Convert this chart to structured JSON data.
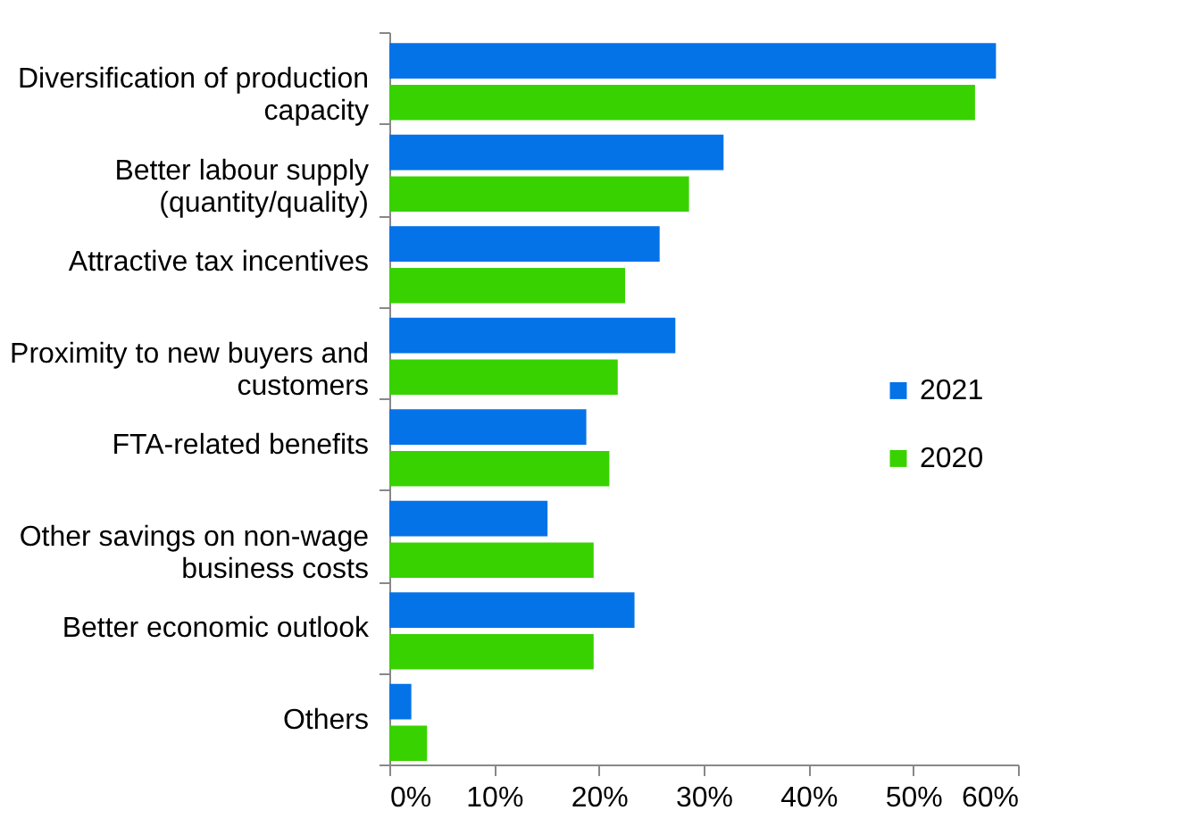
{
  "chart_data": {
    "type": "bar",
    "orientation": "horizontal",
    "categories": [
      "Diversification of production\ncapacity",
      "Better labour supply\n(quantity/quality)",
      "Attractive tax incentives",
      "Proximity to new buyers and\ncustomers",
      "FTA-related benefits",
      "Other savings on non-wage\nbusiness costs",
      "Better economic outlook",
      "Others"
    ],
    "series": [
      {
        "name": "2021",
        "color": "#0573e8",
        "values": [
          57.9,
          31.9,
          25.8,
          27.3,
          18.8,
          15.1,
          23.4,
          2.1
        ]
      },
      {
        "name": "2020",
        "color": "#38d200",
        "values": [
          55.9,
          28.6,
          22.5,
          21.8,
          21.0,
          19.5,
          19.5,
          3.6
        ]
      }
    ],
    "xlim": [
      0,
      60
    ],
    "xticks": [
      {
        "value": 0,
        "label": "0%"
      },
      {
        "value": 10,
        "label": "10%"
      },
      {
        "value": 20,
        "label": "20%"
      },
      {
        "value": 30,
        "label": "30%"
      },
      {
        "value": 40,
        "label": "40%"
      },
      {
        "value": 50,
        "label": "50%"
      },
      {
        "value": 60,
        "label": "60%"
      }
    ],
    "grid": false,
    "legend": "right"
  }
}
